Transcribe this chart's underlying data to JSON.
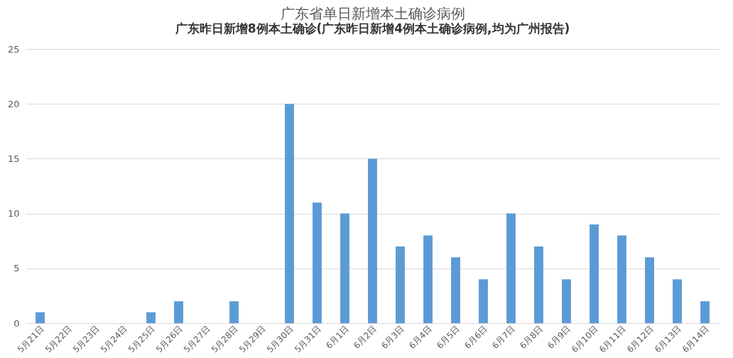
{
  "chart_data": {
    "type": "bar",
    "title": "广东省单日新增本土确诊病例",
    "subtitle": "广东昨日新增8例本土确诊(广东昨日新增4例本土确诊病例,均为广州报告)",
    "categories": [
      "5月21日",
      "5月22日",
      "5月23日",
      "5月24日",
      "5月25日",
      "5月26日",
      "5月27日",
      "5月28日",
      "5月29日",
      "5月30日",
      "5月31日",
      "6月1日",
      "6月2日",
      "6月3日",
      "6月4日",
      "6月5日",
      "6月6日",
      "6月7日",
      "6月8日",
      "6月9日",
      "6月10日",
      "6月11日",
      "6月12日",
      "6月13日",
      "6月14日"
    ],
    "values": [
      1,
      0,
      0,
      0,
      1,
      2,
      0,
      2,
      0,
      20,
      11,
      10,
      15,
      7,
      8,
      6,
      4,
      10,
      7,
      4,
      9,
      8,
      6,
      4,
      2
    ],
    "color": "#5b9bd5",
    "ylim": [
      0,
      25
    ],
    "yticks": [
      0,
      5,
      10,
      15,
      20,
      25
    ],
    "grid": "y"
  }
}
